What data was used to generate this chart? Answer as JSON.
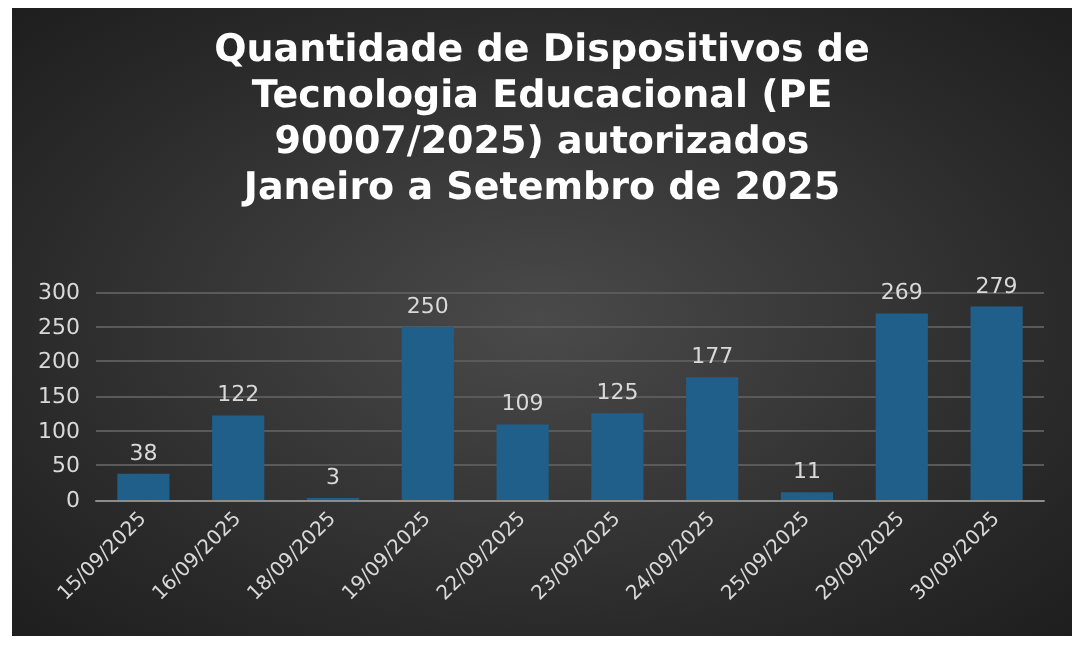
{
  "chart_data": {
    "type": "bar",
    "title": "Quantidade de Dispositivos de\nTecnologia Educacional (PE\n90007/2025) autorizados\nJaneiro a Setembro de 2025",
    "categories": [
      "15/09/2025",
      "16/09/2025",
      "18/09/2025",
      "19/09/2025",
      "22/09/2025",
      "23/09/2025",
      "24/09/2025",
      "25/09/2025",
      "29/09/2025",
      "30/09/2025"
    ],
    "values": [
      38,
      122,
      3,
      250,
      109,
      125,
      177,
      11,
      269,
      279
    ],
    "color": "#1f5f8a",
    "ylim": [
      0,
      300
    ],
    "yticks": [
      0,
      50,
      100,
      150,
      200,
      250,
      300
    ],
    "grid": "y",
    "data_labels": true
  }
}
